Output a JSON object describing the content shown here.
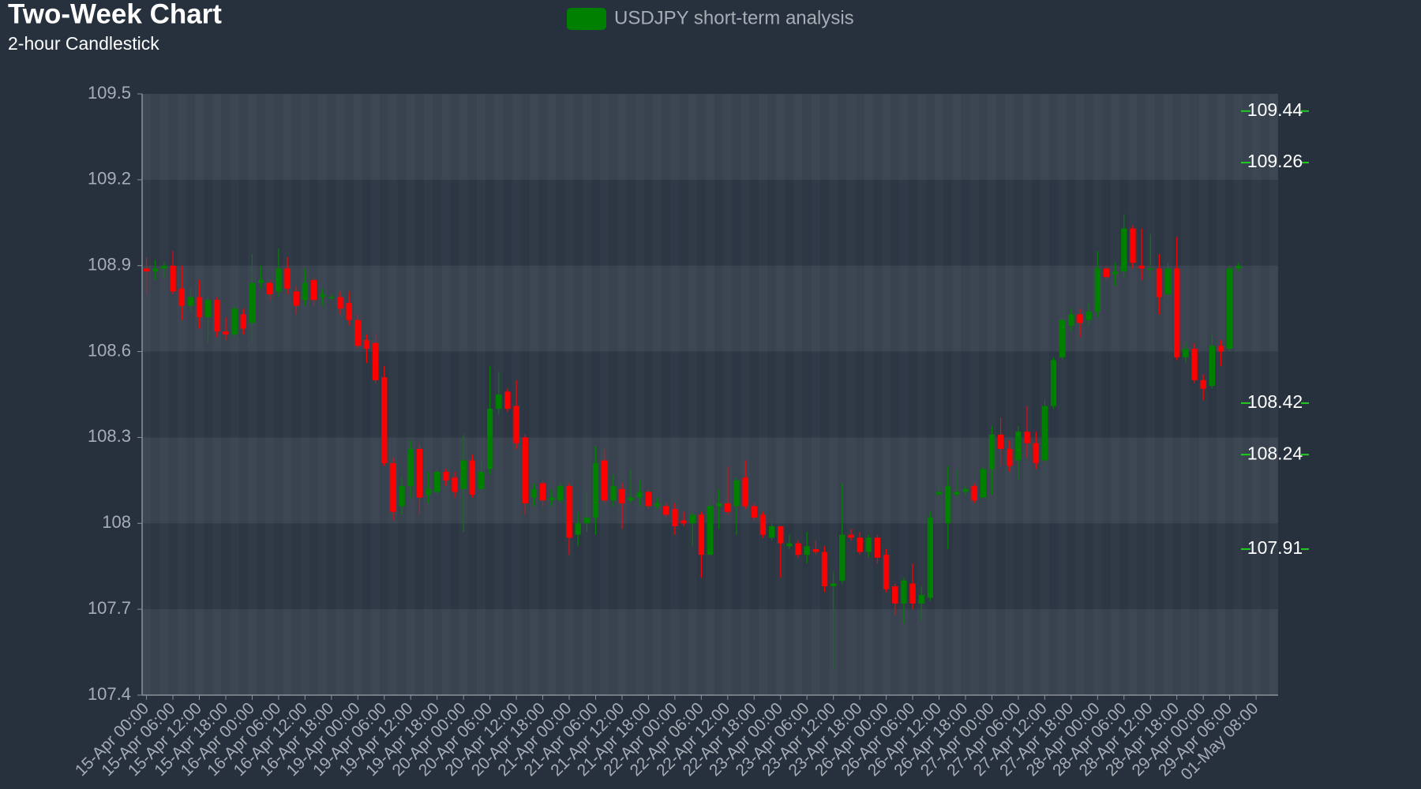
{
  "chart_data": {
    "type": "candlestick",
    "title": "Two-Week Chart",
    "subtitle": "2-hour Candlestick",
    "legend": "top",
    "series": [
      {
        "name": "USDJPY short-term analysis",
        "color": "#008000"
      }
    ],
    "up_color": "#008000",
    "down_color": "#ff0000",
    "level_color": "#22cc22",
    "categories": [
      "15-Apr 00:00",
      null,
      null,
      "15-Apr 06:00",
      null,
      null,
      "15-Apr 12:00",
      null,
      null,
      "15-Apr 18:00",
      null,
      null,
      "16-Apr 00:00",
      null,
      null,
      "16-Apr 06:00",
      null,
      null,
      "16-Apr 12:00",
      null,
      null,
      "16-Apr 18:00",
      null,
      null,
      "19-Apr 00:00",
      null,
      null,
      "19-Apr 06:00",
      null,
      null,
      "19-Apr 12:00",
      null,
      null,
      "19-Apr 18:00",
      null,
      null,
      "20-Apr 00:00",
      null,
      null,
      "20-Apr 06:00",
      null,
      null,
      "20-Apr 12:00",
      null,
      null,
      "20-Apr 18:00",
      null,
      null,
      "21-Apr 00:00",
      null,
      null,
      "21-Apr 06:00",
      null,
      null,
      "21-Apr 12:00",
      null,
      null,
      "21-Apr 18:00",
      null,
      null,
      "22-Apr 00:00",
      null,
      null,
      "22-Apr 06:00",
      null,
      null,
      "22-Apr 12:00",
      null,
      null,
      "22-Apr 18:00",
      null,
      null,
      "23-Apr 00:00",
      null,
      null,
      "23-Apr 06:00",
      null,
      null,
      "23-Apr 12:00",
      null,
      null,
      "23-Apr 18:00",
      null,
      null,
      "26-Apr 00:00",
      null,
      null,
      "26-Apr 06:00",
      null,
      null,
      "26-Apr 12:00",
      null,
      null,
      "26-Apr 18:00",
      null,
      null,
      "27-Apr 00:00",
      null,
      null,
      "27-Apr 06:00",
      null,
      null,
      "27-Apr 12:00",
      null,
      null,
      "27-Apr 18:00",
      null,
      null,
      "28-Apr 00:00",
      null,
      null,
      "28-Apr 06:00",
      null,
      null,
      "28-Apr 12:00",
      null,
      null,
      "28-Apr 18:00",
      null,
      null,
      "29-Apr 00:00",
      null,
      null,
      "29-Apr 06:00",
      null,
      null,
      "01-May 08:00",
      null,
      null
    ],
    "open": [
      108.89,
      108.88,
      108.89,
      108.9,
      108.82,
      108.76,
      108.79,
      108.72,
      108.78,
      108.67,
      108.66,
      108.73,
      108.7,
      108.84,
      108.84,
      108.81,
      108.89,
      108.81,
      108.78,
      108.85,
      108.79,
      108.79,
      108.79,
      108.77,
      108.71,
      108.64,
      108.63,
      108.51,
      108.21,
      108.06,
      108.13,
      108.26,
      108.1,
      108.11,
      108.18,
      108.16,
      108.12,
      108.22,
      108.12,
      108.19,
      108.4,
      108.46,
      108.41,
      108.3,
      108.09,
      108.14,
      108.08,
      108.08,
      108.13,
      107.96,
      108.0,
      108.02,
      108.22,
      108.08,
      108.12,
      108.08,
      108.09,
      108.11,
      108.06,
      108.06,
      108.05,
      108.01,
      108.0,
      108.03,
      107.89,
      108.06,
      108.07,
      108.06,
      108.16,
      108.06,
      108.03,
      107.95,
      107.99,
      107.92,
      107.93,
      107.89,
      107.91,
      107.9,
      107.78,
      107.8,
      107.96,
      107.95,
      107.9,
      107.95,
      107.89,
      107.78,
      107.72,
      107.79,
      107.72,
      107.74,
      108.1,
      108.0,
      108.1,
      108.11,
      108.13,
      108.09,
      108.19,
      108.31,
      108.26,
      108.22,
      108.32,
      108.28,
      108.22,
      108.41,
      108.58,
      108.69,
      108.73,
      108.71,
      108.74,
      108.89,
      108.87,
      108.88,
      109.03,
      108.9,
      108.89,
      108.89,
      108.8,
      108.89,
      108.58,
      108.61,
      108.5,
      108.48,
      108.62,
      108.61,
      108.89,
      null,
      null,
      null,
      null
    ],
    "high": [
      108.93,
      108.92,
      108.91,
      108.95,
      108.9,
      108.82,
      108.85,
      108.79,
      108.79,
      108.72,
      108.76,
      108.75,
      108.94,
      108.9,
      108.85,
      108.96,
      108.93,
      108.83,
      108.89,
      108.86,
      108.82,
      108.8,
      108.81,
      108.81,
      108.73,
      108.66,
      108.66,
      108.55,
      108.23,
      108.16,
      108.29,
      108.28,
      108.18,
      108.19,
      108.19,
      108.18,
      108.31,
      108.24,
      108.21,
      108.55,
      108.53,
      108.47,
      108.5,
      108.31,
      108.14,
      108.15,
      108.12,
      108.14,
      108.14,
      108.04,
      108.11,
      108.27,
      108.26,
      108.17,
      108.14,
      108.19,
      108.15,
      108.12,
      108.09,
      108.07,
      108.07,
      108.04,
      108.04,
      108.04,
      108.1,
      108.12,
      108.2,
      108.16,
      108.22,
      108.07,
      108.04,
      108.0,
      107.99,
      107.96,
      107.94,
      107.97,
      107.94,
      107.92,
      107.83,
      108.14,
      107.98,
      107.97,
      107.96,
      107.96,
      107.91,
      107.79,
      107.81,
      107.86,
      107.78,
      108.04,
      108.14,
      108.2,
      108.19,
      108.13,
      108.14,
      108.2,
      108.34,
      108.37,
      108.29,
      108.34,
      108.41,
      108.32,
      108.43,
      108.58,
      108.72,
      108.75,
      108.75,
      108.77,
      108.95,
      108.9,
      108.91,
      109.08,
      109.04,
      109.03,
      109.01,
      108.94,
      108.91,
      109.0,
      108.63,
      108.63,
      108.52,
      108.66,
      108.64,
      108.9,
      108.91,
      null,
      null,
      null,
      null
    ],
    "low": [
      108.8,
      108.85,
      108.86,
      108.8,
      108.71,
      108.74,
      108.68,
      108.63,
      108.65,
      108.64,
      108.65,
      108.66,
      108.63,
      108.82,
      108.78,
      108.79,
      108.8,
      108.73,
      108.76,
      108.76,
      108.76,
      108.78,
      108.73,
      108.69,
      108.61,
      108.56,
      108.49,
      108.2,
      108.01,
      108.03,
      108.09,
      108.03,
      108.07,
      108.1,
      108.13,
      108.09,
      107.97,
      108.09,
      108.11,
      108.17,
      108.38,
      108.39,
      108.26,
      108.03,
      108.06,
      108.06,
      108.06,
      108.07,
      107.89,
      107.92,
      107.97,
      107.96,
      108.07,
      108.06,
      107.98,
      108.07,
      108.06,
      108.05,
      108.05,
      108.02,
      107.96,
      107.99,
      107.92,
      107.81,
      107.89,
      107.98,
      108.03,
      107.96,
      108.05,
      108.01,
      107.95,
      107.94,
      107.81,
      107.91,
      107.88,
      107.86,
      107.89,
      107.76,
      107.49,
      107.79,
      107.94,
      107.89,
      107.88,
      107.86,
      107.76,
      107.68,
      107.65,
      107.7,
      107.66,
      107.73,
      108.08,
      107.91,
      108.09,
      108.1,
      108.07,
      108.09,
      108.1,
      108.2,
      108.18,
      108.15,
      108.23,
      108.19,
      108.21,
      108.4,
      108.57,
      108.67,
      108.65,
      108.69,
      108.72,
      108.85,
      108.83,
      108.86,
      108.89,
      108.85,
      108.86,
      108.73,
      108.78,
      108.57,
      108.56,
      108.49,
      108.43,
      108.47,
      108.55,
      108.6,
      108.88,
      null,
      null,
      null,
      null
    ],
    "close": [
      108.88,
      108.89,
      108.9,
      108.81,
      108.76,
      108.79,
      108.72,
      108.78,
      108.67,
      108.66,
      108.75,
      108.68,
      108.84,
      108.85,
      108.8,
      108.89,
      108.82,
      108.76,
      108.84,
      108.78,
      108.8,
      108.79,
      108.75,
      108.71,
      108.62,
      108.61,
      108.5,
      108.21,
      108.04,
      108.13,
      108.26,
      108.09,
      108.12,
      108.18,
      108.15,
      108.11,
      108.22,
      108.1,
      108.18,
      108.4,
      108.45,
      108.4,
      108.28,
      108.07,
      108.12,
      108.08,
      108.09,
      108.13,
      107.95,
      108.0,
      108.02,
      108.21,
      108.08,
      108.13,
      108.07,
      108.09,
      108.11,
      108.06,
      108.07,
      108.03,
      107.99,
      108.0,
      108.03,
      107.89,
      108.06,
      108.07,
      108.04,
      108.15,
      108.06,
      108.02,
      107.96,
      107.99,
      107.93,
      107.93,
      107.89,
      107.92,
      107.9,
      107.78,
      107.79,
      107.96,
      107.95,
      107.9,
      107.95,
      107.88,
      107.77,
      107.72,
      107.8,
      107.72,
      107.75,
      108.02,
      108.11,
      108.13,
      108.11,
      108.12,
      108.08,
      108.19,
      108.31,
      108.26,
      108.2,
      108.32,
      108.28,
      108.21,
      108.41,
      108.57,
      108.71,
      108.73,
      108.7,
      108.74,
      108.89,
      108.86,
      108.88,
      109.03,
      108.91,
      108.89,
      108.89,
      108.79,
      108.89,
      108.58,
      108.61,
      108.5,
      108.47,
      108.62,
      108.6,
      108.89,
      108.9,
      null,
      null,
      null,
      null
    ],
    "levels": [
      109.44,
      109.26,
      108.42,
      108.24,
      107.91
    ],
    "ylim": [
      107.4,
      109.5
    ],
    "yticks": [
      107.4,
      107.7,
      108,
      108.3,
      108.6,
      108.9,
      109.2,
      109.5
    ],
    "grid": true
  }
}
